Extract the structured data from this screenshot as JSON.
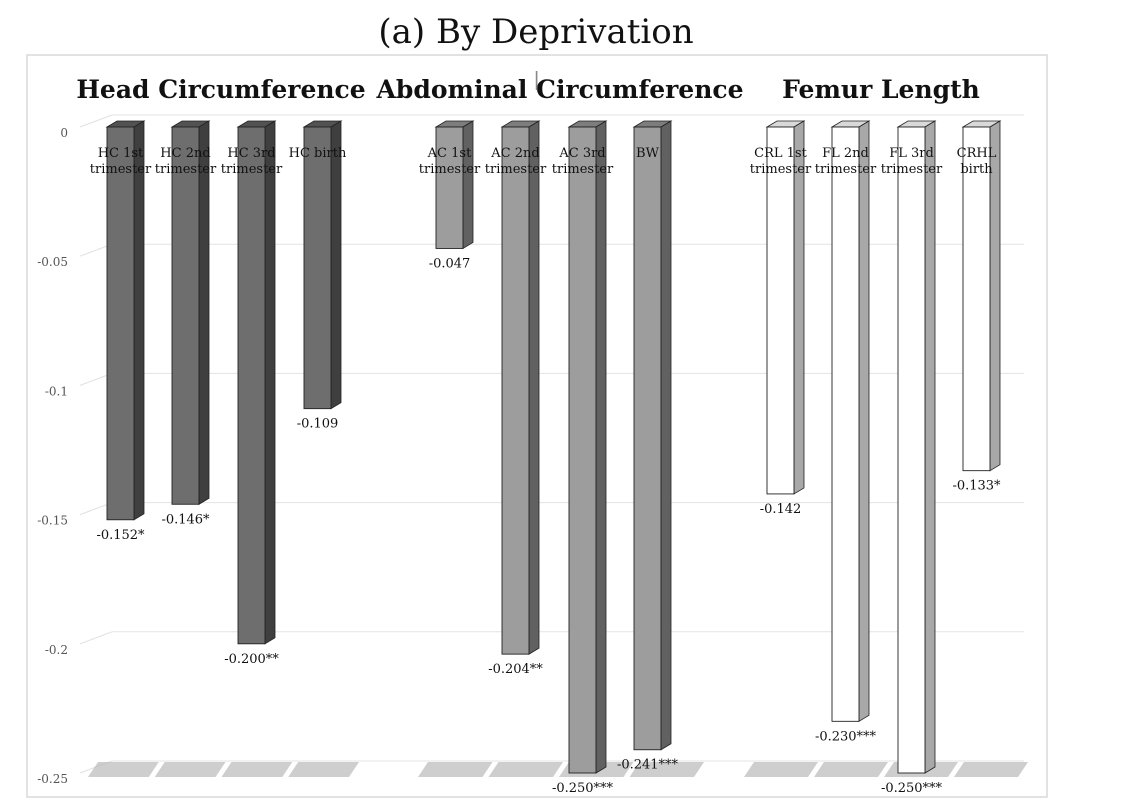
{
  "chart_data": {
    "type": "bar",
    "title": "(a) By Deprivation",
    "ylim": [
      -0.25,
      0
    ],
    "yticks": [
      "0",
      "-0.05",
      "-0.1",
      "-0.15",
      "-0.2",
      "-0.25"
    ],
    "ytick_values": [
      0,
      -0.05,
      -0.1,
      -0.15,
      -0.2,
      -0.25
    ],
    "grid": true,
    "groups": [
      {
        "title": "Head Circumference",
        "fill": "#6e6e6e",
        "side": "#3f3f3f",
        "top": "#525252",
        "bars": [
          {
            "label": [
              "HC 1st",
              "trimester"
            ],
            "value": -0.152,
            "value_label": "-0.152*"
          },
          {
            "label": [
              "HC 2nd",
              "trimester"
            ],
            "value": -0.146,
            "value_label": "-0.146*"
          },
          {
            "label": [
              "HC 3rd",
              "trimester"
            ],
            "value": -0.2,
            "value_label": "-0.200**"
          },
          {
            "label": [
              "HC birth"
            ],
            "value": -0.109,
            "value_label": "-0.109"
          }
        ]
      },
      {
        "title": "Abdominal Circumference",
        "fill": "#9d9d9d",
        "side": "#616161",
        "top": "#7d7d7d",
        "bars": [
          {
            "label": [
              "AC 1st",
              "trimester"
            ],
            "value": -0.047,
            "value_label": "-0.047"
          },
          {
            "label": [
              "AC 2nd",
              "trimester"
            ],
            "value": -0.204,
            "value_label": "-0.204**"
          },
          {
            "label": [
              "AC 3rd",
              "trimester"
            ],
            "value": -0.25,
            "value_label": "-0.250***"
          },
          {
            "label": [
              "BW"
            ],
            "value": -0.241,
            "value_label": "-0.241***"
          }
        ]
      },
      {
        "title": "Femur Length",
        "fill": "#ffffff",
        "side": "#a8a8a8",
        "top": "#d9d9d9",
        "bars": [
          {
            "label": [
              "CRL 1st",
              "trimester"
            ],
            "value": -0.142,
            "value_label": "-0.142"
          },
          {
            "label": [
              "FL 2nd",
              "trimester"
            ],
            "value": -0.23,
            "value_label": "-0.230***"
          },
          {
            "label": [
              "FL 3rd",
              "trimester"
            ],
            "value": -0.25,
            "value_label": "-0.250***"
          },
          {
            "label": [
              "CRHL",
              "birth"
            ],
            "value": -0.133,
            "value_label": "-0.133*"
          }
        ]
      }
    ]
  }
}
